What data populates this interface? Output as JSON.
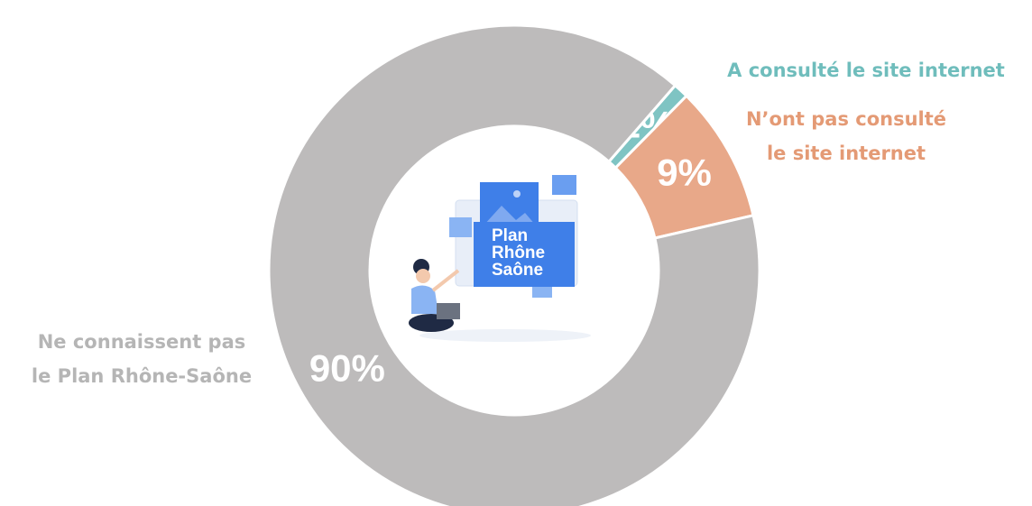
{
  "chart_data": {
    "type": "pie",
    "categories": [
      [
        "A consulté le site internet"
      ],
      [
        "N’ont pas consulté",
        "le site internet"
      ],
      [
        "Ne connaissent pas",
        "le Plan Rhône-Saône"
      ]
    ],
    "values": [
      1,
      9,
      90
    ],
    "value_labels": [
      "1%",
      "9%",
      "90%"
    ],
    "colors": [
      "#7fc4c3",
      "#e8a889",
      "#bdbbbb"
    ],
    "label_colors": [
      "#6fbdbc",
      "#e49a75",
      "#b5b5b5"
    ],
    "center_label": [
      "Plan",
      "Rhône",
      "Saône"
    ]
  }
}
